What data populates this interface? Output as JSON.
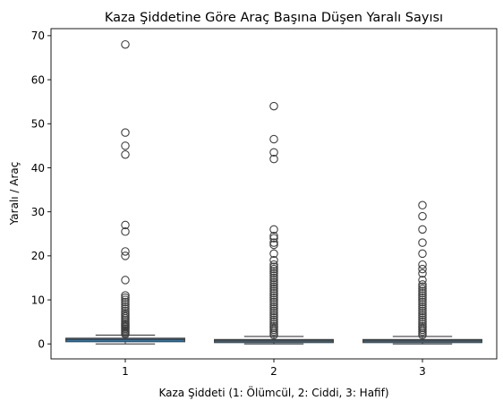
{
  "chart_data": {
    "type": "box",
    "title": "Kaza Şiddetine Göre Araç Başına Düşen Yaralı Sayısı",
    "xlabel": "Kaza Şiddeti (1: Ölümcül, 2: Ciddi, 3: Hafif)",
    "ylabel": "Yaralı / Araç",
    "categories": [
      "1",
      "2",
      "3"
    ],
    "ylim": [
      -3.4,
      71.6
    ],
    "yticks": [
      0,
      10,
      20,
      30,
      40,
      50,
      60,
      70
    ],
    "grid": false,
    "box_color": "#3274a1",
    "line_color": "#3f3f3f",
    "boxes": [
      {
        "category": "1",
        "whisker_low": 0,
        "q1": 0.5,
        "median": 1.0,
        "q3": 1.3,
        "whisker_high": 2.0,
        "outliers": [
          68,
          48,
          45,
          43,
          27,
          25.5,
          21,
          20,
          14.5,
          11,
          10.5,
          10,
          9.5,
          9,
          8.5,
          8,
          7.5,
          7,
          6.6,
          6.2,
          5.8,
          5.4,
          5,
          4.6,
          4.3,
          4,
          3.7,
          3.4,
          3.1,
          2.8,
          2.5,
          2.2
        ]
      },
      {
        "category": "2",
        "whisker_low": 0,
        "q1": 0.3,
        "median": 0.7,
        "q3": 1.0,
        "whisker_high": 1.7,
        "outliers": [
          54,
          46.5,
          43.5,
          42,
          26,
          24.5,
          24,
          23,
          22.5,
          20.5,
          19,
          18,
          17.5,
          17,
          16.5,
          16,
          15.5,
          15,
          14.5,
          14,
          13.5,
          13,
          12.5,
          12,
          11.5,
          11,
          10.5,
          10,
          9.5,
          9,
          8.5,
          8,
          7.5,
          7,
          6.5,
          6,
          5.5,
          5,
          4.5,
          4,
          3.6,
          3.2,
          2.8,
          2.4,
          2.0
        ]
      },
      {
        "category": "3",
        "whisker_low": 0,
        "q1": 0.3,
        "median": 0.7,
        "q3": 1.0,
        "whisker_high": 1.7,
        "outliers": [
          31.5,
          29,
          26,
          23,
          20.5,
          18,
          17,
          16,
          14.5,
          13.5,
          13,
          12.5,
          12,
          11.5,
          11,
          10.5,
          10,
          9.5,
          9,
          8.5,
          8,
          7.5,
          7,
          6.5,
          6,
          5.5,
          5,
          4.5,
          4,
          3.6,
          3.2,
          2.8,
          2.4,
          2.0
        ]
      }
    ]
  }
}
